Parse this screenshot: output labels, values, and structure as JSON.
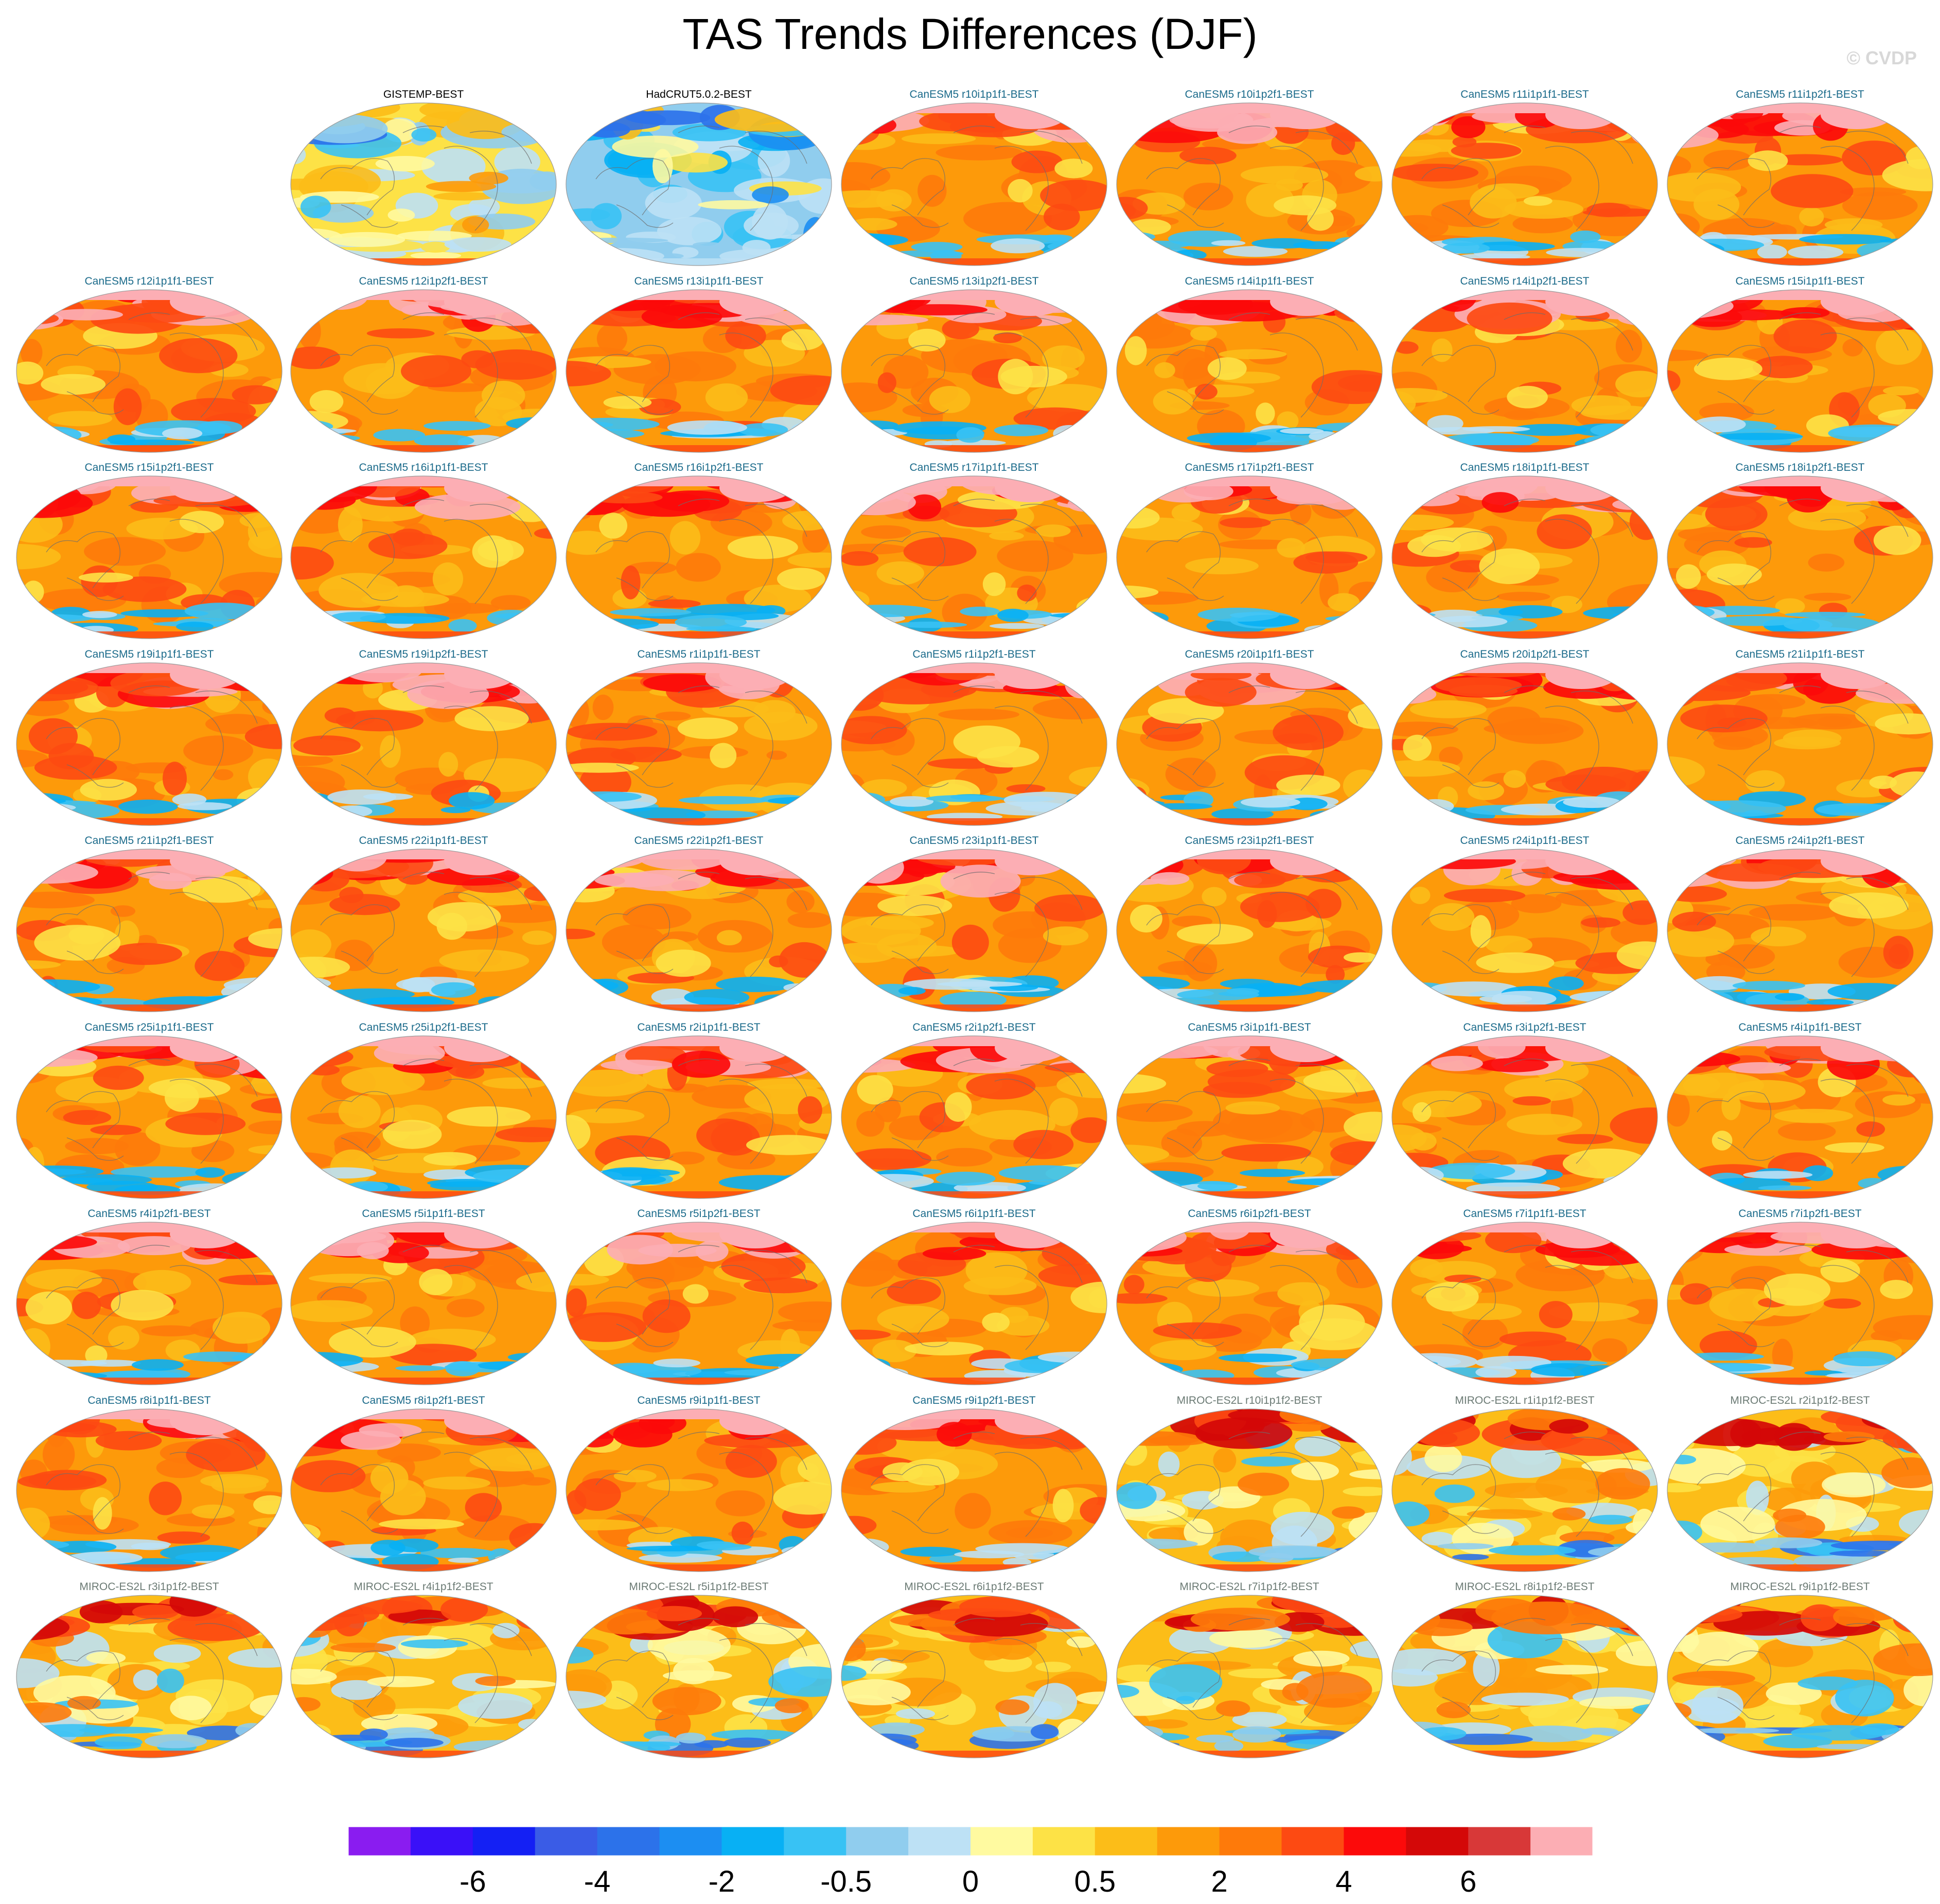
{
  "title": "TAS Trends Differences (DJF)",
  "watermark": "© CVDP",
  "colorbar": {
    "colors": [
      "#8a1cf0",
      "#3a10f8",
      "#1420f4",
      "#3a5ce6",
      "#2c72ea",
      "#1c8ef2",
      "#08b0f4",
      "#38c2f4",
      "#90cdee",
      "#bde1f5",
      "#fffaa0",
      "#fde246",
      "#fcbd18",
      "#fd9a0a",
      "#fe7a0a",
      "#fd4a12",
      "#fc0a0a",
      "#d40808",
      "#d83838",
      "#fcaeb4"
    ],
    "labels": [
      "-6",
      "-4",
      "-2",
      "-0.5",
      "0",
      "0.5",
      "2",
      "4",
      "6"
    ]
  },
  "panels": [
    {
      "title": "GISTEMP-BEST",
      "group": "obs",
      "style": "obs1"
    },
    {
      "title": "HadCRUT5.0.2-BEST",
      "group": "obs",
      "style": "obs2"
    },
    {
      "title": "CanESM5 r10i1p1f1-BEST",
      "group": "canesm",
      "style": "can"
    },
    {
      "title": "CanESM5 r10i1p2f1-BEST",
      "group": "canesm",
      "style": "can"
    },
    {
      "title": "CanESM5 r11i1p1f1-BEST",
      "group": "canesm",
      "style": "can"
    },
    {
      "title": "CanESM5 r11i1p2f1-BEST",
      "group": "canesm",
      "style": "can"
    },
    {
      "title": "CanESM5 r12i1p1f1-BEST",
      "group": "canesm",
      "style": "can"
    },
    {
      "title": "CanESM5 r12i1p2f1-BEST",
      "group": "canesm",
      "style": "can"
    },
    {
      "title": "CanESM5 r13i1p1f1-BEST",
      "group": "canesm",
      "style": "can"
    },
    {
      "title": "CanESM5 r13i1p2f1-BEST",
      "group": "canesm",
      "style": "can"
    },
    {
      "title": "CanESM5 r14i1p1f1-BEST",
      "group": "canesm",
      "style": "can"
    },
    {
      "title": "CanESM5 r14i1p2f1-BEST",
      "group": "canesm",
      "style": "can"
    },
    {
      "title": "CanESM5 r15i1p1f1-BEST",
      "group": "canesm",
      "style": "can"
    },
    {
      "title": "CanESM5 r15i1p2f1-BEST",
      "group": "canesm",
      "style": "can"
    },
    {
      "title": "CanESM5 r16i1p1f1-BEST",
      "group": "canesm",
      "style": "can"
    },
    {
      "title": "CanESM5 r16i1p2f1-BEST",
      "group": "canesm",
      "style": "can"
    },
    {
      "title": "CanESM5 r17i1p1f1-BEST",
      "group": "canesm",
      "style": "can"
    },
    {
      "title": "CanESM5 r17i1p2f1-BEST",
      "group": "canesm",
      "style": "can"
    },
    {
      "title": "CanESM5 r18i1p1f1-BEST",
      "group": "canesm",
      "style": "can"
    },
    {
      "title": "CanESM5 r18i1p2f1-BEST",
      "group": "canesm",
      "style": "can"
    },
    {
      "title": "CanESM5 r19i1p1f1-BEST",
      "group": "canesm",
      "style": "can"
    },
    {
      "title": "CanESM5 r19i1p2f1-BEST",
      "group": "canesm",
      "style": "can"
    },
    {
      "title": "CanESM5 r1i1p1f1-BEST",
      "group": "canesm",
      "style": "can"
    },
    {
      "title": "CanESM5 r1i1p2f1-BEST",
      "group": "canesm",
      "style": "can"
    },
    {
      "title": "CanESM5 r20i1p1f1-BEST",
      "group": "canesm",
      "style": "can"
    },
    {
      "title": "CanESM5 r20i1p2f1-BEST",
      "group": "canesm",
      "style": "can"
    },
    {
      "title": "CanESM5 r21i1p1f1-BEST",
      "group": "canesm",
      "style": "can"
    },
    {
      "title": "CanESM5 r21i1p2f1-BEST",
      "group": "canesm",
      "style": "can"
    },
    {
      "title": "CanESM5 r22i1p1f1-BEST",
      "group": "canesm",
      "style": "can"
    },
    {
      "title": "CanESM5 r22i1p2f1-BEST",
      "group": "canesm",
      "style": "can"
    },
    {
      "title": "CanESM5 r23i1p1f1-BEST",
      "group": "canesm",
      "style": "can"
    },
    {
      "title": "CanESM5 r23i1p2f1-BEST",
      "group": "canesm",
      "style": "can"
    },
    {
      "title": "CanESM5 r24i1p1f1-BEST",
      "group": "canesm",
      "style": "can"
    },
    {
      "title": "CanESM5 r24i1p2f1-BEST",
      "group": "canesm",
      "style": "can"
    },
    {
      "title": "CanESM5 r25i1p1f1-BEST",
      "group": "canesm",
      "style": "can"
    },
    {
      "title": "CanESM5 r25i1p2f1-BEST",
      "group": "canesm",
      "style": "can"
    },
    {
      "title": "CanESM5 r2i1p1f1-BEST",
      "group": "canesm",
      "style": "can"
    },
    {
      "title": "CanESM5 r2i1p2f1-BEST",
      "group": "canesm",
      "style": "can"
    },
    {
      "title": "CanESM5 r3i1p1f1-BEST",
      "group": "canesm",
      "style": "can"
    },
    {
      "title": "CanESM5 r3i1p2f1-BEST",
      "group": "canesm",
      "style": "can"
    },
    {
      "title": "CanESM5 r4i1p1f1-BEST",
      "group": "canesm",
      "style": "can"
    },
    {
      "title": "CanESM5 r4i1p2f1-BEST",
      "group": "canesm",
      "style": "can"
    },
    {
      "title": "CanESM5 r5i1p1f1-BEST",
      "group": "canesm",
      "style": "can"
    },
    {
      "title": "CanESM5 r5i1p2f1-BEST",
      "group": "canesm",
      "style": "can"
    },
    {
      "title": "CanESM5 r6i1p1f1-BEST",
      "group": "canesm",
      "style": "can"
    },
    {
      "title": "CanESM5 r6i1p2f1-BEST",
      "group": "canesm",
      "style": "can"
    },
    {
      "title": "CanESM5 r7i1p1f1-BEST",
      "group": "canesm",
      "style": "can"
    },
    {
      "title": "CanESM5 r7i1p2f1-BEST",
      "group": "canesm",
      "style": "can"
    },
    {
      "title": "CanESM5 r8i1p1f1-BEST",
      "group": "canesm",
      "style": "can"
    },
    {
      "title": "CanESM5 r8i1p2f1-BEST",
      "group": "canesm",
      "style": "can"
    },
    {
      "title": "CanESM5 r9i1p1f1-BEST",
      "group": "canesm",
      "style": "can"
    },
    {
      "title": "CanESM5 r9i1p2f1-BEST",
      "group": "canesm",
      "style": "can"
    },
    {
      "title": "MIROC-ES2L r10i1p1f2-BEST",
      "group": "miroc",
      "style": "miroc"
    },
    {
      "title": "MIROC-ES2L r1i1p1f2-BEST",
      "group": "miroc",
      "style": "miroc"
    },
    {
      "title": "MIROC-ES2L r2i1p1f2-BEST",
      "group": "miroc",
      "style": "miroc"
    },
    {
      "title": "MIROC-ES2L r3i1p1f2-BEST",
      "group": "miroc",
      "style": "miroc"
    },
    {
      "title": "MIROC-ES2L r4i1p1f2-BEST",
      "group": "miroc",
      "style": "miroc"
    },
    {
      "title": "MIROC-ES2L r5i1p1f2-BEST",
      "group": "miroc",
      "style": "miroc"
    },
    {
      "title": "MIROC-ES2L r6i1p1f2-BEST",
      "group": "miroc",
      "style": "miroc"
    },
    {
      "title": "MIROC-ES2L r7i1p1f2-BEST",
      "group": "miroc",
      "style": "miroc"
    },
    {
      "title": "MIROC-ES2L r8i1p1f2-BEST",
      "group": "miroc",
      "style": "miroc"
    },
    {
      "title": "MIROC-ES2L r9i1p1f2-BEST",
      "group": "miroc",
      "style": "miroc"
    }
  ],
  "title_colors": {
    "obs": "#000000",
    "canesm": "#1a6a8a",
    "miroc": "#6b7a74"
  }
}
